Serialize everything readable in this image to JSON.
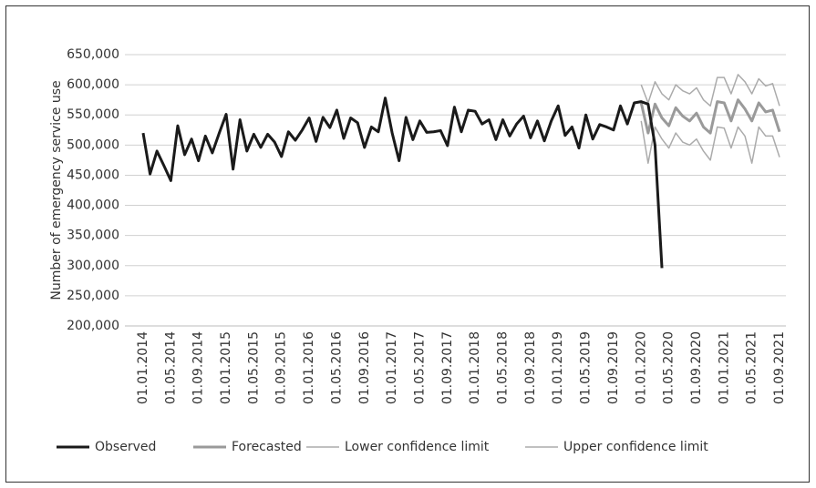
{
  "chart_data": {
    "type": "line",
    "y_label": "Number of emergency service use",
    "categories": [
      "01.01.2014",
      null,
      null,
      null,
      "01.05.2014",
      null,
      null,
      null,
      "01.09.2014",
      null,
      null,
      null,
      "01.01.2015",
      null,
      null,
      null,
      "01.05.2015",
      null,
      null,
      null,
      "01.09.2015",
      null,
      null,
      null,
      "01.01.2016",
      null,
      null,
      null,
      "01.05.2016",
      null,
      null,
      null,
      "01.09.2016",
      null,
      null,
      null,
      "01.01.2017",
      null,
      null,
      null,
      "01.05.2017",
      null,
      null,
      null,
      "01.09.2017",
      null,
      null,
      null,
      "01.01.2018",
      null,
      null,
      null,
      "01.05.2018",
      null,
      null,
      null,
      "01.09.2018",
      null,
      null,
      null,
      "01.01.2019",
      null,
      null,
      null,
      "01.05.2019",
      null,
      null,
      null,
      "01.09.2019",
      null,
      null,
      null,
      "01.01.2020",
      null,
      null,
      null,
      "01.05.2020",
      null,
      null,
      null,
      "01.09.2020",
      null,
      null,
      null,
      "01.01.2021",
      null,
      null,
      null,
      "01.05.2021",
      null,
      null,
      null,
      "01.09.2021"
    ],
    "series": [
      {
        "name": "Observed",
        "color": "#1a1a1a",
        "width": 3,
        "values": [
          520000,
          452000,
          490000,
          466000,
          441000,
          532000,
          484000,
          510000,
          474000,
          515000,
          487000,
          520000,
          551000,
          460000,
          542000,
          490000,
          518000,
          496000,
          518000,
          505000,
          481000,
          522000,
          508000,
          525000,
          545000,
          506000,
          546000,
          529000,
          558000,
          511000,
          545000,
          537000,
          496000,
          530000,
          522000,
          578000,
          520000,
          474000,
          546000,
          509000,
          540000,
          521000,
          522000,
          524000,
          499000,
          563000,
          522000,
          558000,
          556000,
          535000,
          542000,
          509000,
          542000,
          515000,
          535000,
          548000,
          512000,
          540000,
          507000,
          540000,
          565000,
          516000,
          530000,
          495000,
          550000,
          510000,
          534000,
          530000,
          525000,
          565000,
          535000,
          570000,
          572000,
          568000,
          500000,
          296000,
          null,
          null,
          null,
          null,
          null,
          null,
          null,
          null,
          null,
          null,
          null,
          null,
          null,
          null,
          null,
          null,
          null
        ]
      },
      {
        "name": "Forecasted",
        "color": "#9a9a9a",
        "width": 3,
        "values": [
          null,
          null,
          null,
          null,
          null,
          null,
          null,
          null,
          null,
          null,
          null,
          null,
          null,
          null,
          null,
          null,
          null,
          null,
          null,
          null,
          null,
          null,
          null,
          null,
          null,
          null,
          null,
          null,
          null,
          null,
          null,
          null,
          null,
          null,
          null,
          null,
          null,
          null,
          null,
          null,
          null,
          null,
          null,
          null,
          null,
          null,
          null,
          null,
          null,
          null,
          null,
          null,
          null,
          null,
          null,
          null,
          null,
          null,
          null,
          null,
          null,
          null,
          null,
          null,
          null,
          null,
          null,
          null,
          null,
          null,
          null,
          null,
          570000,
          520000,
          568000,
          545000,
          532000,
          562000,
          548000,
          540000,
          553000,
          530000,
          520000,
          572000,
          570000,
          540000,
          575000,
          560000,
          540000,
          570000,
          555000,
          558000,
          522000
        ]
      },
      {
        "name": "Lower confidence limit",
        "color": "#ababab",
        "width": 1.5,
        "values": [
          null,
          null,
          null,
          null,
          null,
          null,
          null,
          null,
          null,
          null,
          null,
          null,
          null,
          null,
          null,
          null,
          null,
          null,
          null,
          null,
          null,
          null,
          null,
          null,
          null,
          null,
          null,
          null,
          null,
          null,
          null,
          null,
          null,
          null,
          null,
          null,
          null,
          null,
          null,
          null,
          null,
          null,
          null,
          null,
          null,
          null,
          null,
          null,
          null,
          null,
          null,
          null,
          null,
          null,
          null,
          null,
          null,
          null,
          null,
          null,
          null,
          null,
          null,
          null,
          null,
          null,
          null,
          null,
          null,
          null,
          null,
          null,
          540000,
          470000,
          530000,
          510000,
          495000,
          520000,
          505000,
          500000,
          510000,
          490000,
          475000,
          530000,
          528000,
          495000,
          530000,
          515000,
          470000,
          530000,
          515000,
          515000,
          480000
        ]
      },
      {
        "name": "Upper confidence limit",
        "color": "#ababab",
        "width": 1.5,
        "values": [
          null,
          null,
          null,
          null,
          null,
          null,
          null,
          null,
          null,
          null,
          null,
          null,
          null,
          null,
          null,
          null,
          null,
          null,
          null,
          null,
          null,
          null,
          null,
          null,
          null,
          null,
          null,
          null,
          null,
          null,
          null,
          null,
          null,
          null,
          null,
          null,
          null,
          null,
          null,
          null,
          null,
          null,
          null,
          null,
          null,
          null,
          null,
          null,
          null,
          null,
          null,
          null,
          null,
          null,
          null,
          null,
          null,
          null,
          null,
          null,
          null,
          null,
          null,
          null,
          null,
          null,
          null,
          null,
          null,
          null,
          null,
          null,
          600000,
          570000,
          605000,
          585000,
          575000,
          600000,
          590000,
          585000,
          595000,
          575000,
          565000,
          612000,
          612000,
          585000,
          617000,
          605000,
          585000,
          610000,
          598000,
          602000,
          565000
        ]
      }
    ],
    "ylim": [
      200000,
      650000
    ],
    "yticks": [
      {
        "value": 200000,
        "label": "200,000"
      },
      {
        "value": 250000,
        "label": "250,000"
      },
      {
        "value": 300000,
        "label": "300,000"
      },
      {
        "value": 350000,
        "label": "350,000"
      },
      {
        "value": 400000,
        "label": "400,000"
      },
      {
        "value": 450000,
        "label": "450,000"
      },
      {
        "value": 500000,
        "label": "500,000"
      },
      {
        "value": 550000,
        "label": "550,000"
      },
      {
        "value": 600000,
        "label": "600,000"
      },
      {
        "value": 650000,
        "label": "650,000"
      }
    ],
    "grid": true,
    "legend": "bottom"
  }
}
